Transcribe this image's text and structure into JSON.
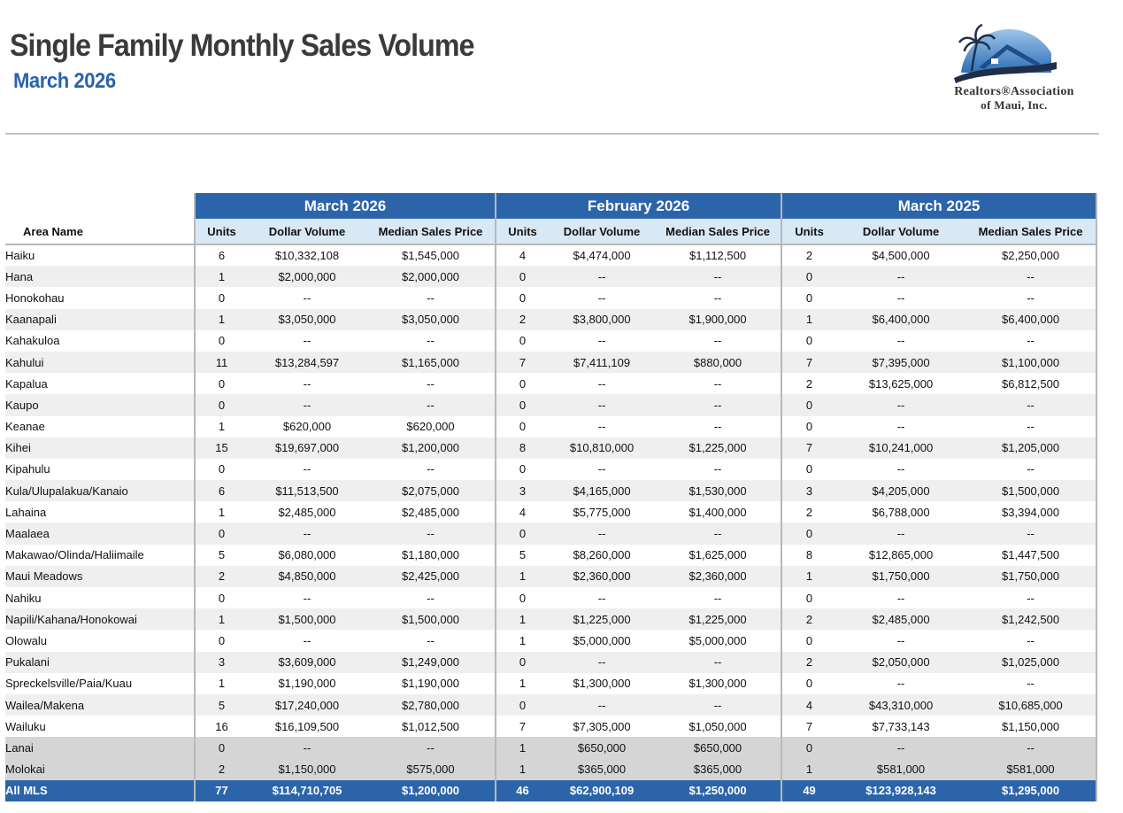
{
  "header": {
    "title": "Single Family Monthly Sales Volume",
    "subtitle": "March 2026"
  },
  "logo": {
    "icon": "palm-house-logo-icon",
    "line1": "Realtors®Association",
    "line2": "of Maui, Inc.",
    "colors": {
      "blue": "#2f6fb5",
      "dark": "#1f2f4a"
    }
  },
  "table": {
    "area_header": "Area Name",
    "groups": [
      "March 2026",
      "February 2026",
      "March 2025"
    ],
    "columns": [
      "Units",
      "Dollar Volume",
      "Median Sales Price"
    ],
    "rows": [
      {
        "area": "Haiku",
        "v": [
          "6",
          "$10,332,108",
          "$1,545,000",
          "4",
          "$4,474,000",
          "$1,112,500",
          "2",
          "$4,500,000",
          "$2,250,000"
        ]
      },
      {
        "area": "Hana",
        "v": [
          "1",
          "$2,000,000",
          "$2,000,000",
          "0",
          "--",
          "--",
          "0",
          "--",
          "--"
        ]
      },
      {
        "area": "Honokohau",
        "v": [
          "0",
          "--",
          "--",
          "0",
          "--",
          "--",
          "0",
          "--",
          "--"
        ]
      },
      {
        "area": "Kaanapali",
        "v": [
          "1",
          "$3,050,000",
          "$3,050,000",
          "2",
          "$3,800,000",
          "$1,900,000",
          "1",
          "$6,400,000",
          "$6,400,000"
        ]
      },
      {
        "area": "Kahakuloa",
        "v": [
          "0",
          "--",
          "--",
          "0",
          "--",
          "--",
          "0",
          "--",
          "--"
        ]
      },
      {
        "area": "Kahului",
        "v": [
          "11",
          "$13,284,597",
          "$1,165,000",
          "7",
          "$7,411,109",
          "$880,000",
          "7",
          "$7,395,000",
          "$1,100,000"
        ]
      },
      {
        "area": "Kapalua",
        "v": [
          "0",
          "--",
          "--",
          "0",
          "--",
          "--",
          "2",
          "$13,625,000",
          "$6,812,500"
        ]
      },
      {
        "area": "Kaupo",
        "v": [
          "0",
          "--",
          "--",
          "0",
          "--",
          "--",
          "0",
          "--",
          "--"
        ]
      },
      {
        "area": "Keanae",
        "v": [
          "1",
          "$620,000",
          "$620,000",
          "0",
          "--",
          "--",
          "0",
          "--",
          "--"
        ]
      },
      {
        "area": "Kihei",
        "v": [
          "15",
          "$19,697,000",
          "$1,200,000",
          "8",
          "$10,810,000",
          "$1,225,000",
          "7",
          "$10,241,000",
          "$1,205,000"
        ]
      },
      {
        "area": "Kipahulu",
        "v": [
          "0",
          "--",
          "--",
          "0",
          "--",
          "--",
          "0",
          "--",
          "--"
        ]
      },
      {
        "area": "Kula/Ulupalakua/Kanaio",
        "v": [
          "6",
          "$11,513,500",
          "$2,075,000",
          "3",
          "$4,165,000",
          "$1,530,000",
          "3",
          "$4,205,000",
          "$1,500,000"
        ]
      },
      {
        "area": "Lahaina",
        "v": [
          "1",
          "$2,485,000",
          "$2,485,000",
          "4",
          "$5,775,000",
          "$1,400,000",
          "2",
          "$6,788,000",
          "$3,394,000"
        ]
      },
      {
        "area": "Maalaea",
        "v": [
          "0",
          "--",
          "--",
          "0",
          "--",
          "--",
          "0",
          "--",
          "--"
        ]
      },
      {
        "area": "Makawao/Olinda/Haliimaile",
        "v": [
          "5",
          "$6,080,000",
          "$1,180,000",
          "5",
          "$8,260,000",
          "$1,625,000",
          "8",
          "$12,865,000",
          "$1,447,500"
        ]
      },
      {
        "area": "Maui Meadows",
        "v": [
          "2",
          "$4,850,000",
          "$2,425,000",
          "1",
          "$2,360,000",
          "$2,360,000",
          "1",
          "$1,750,000",
          "$1,750,000"
        ]
      },
      {
        "area": "Nahiku",
        "v": [
          "0",
          "--",
          "--",
          "0",
          "--",
          "--",
          "0",
          "--",
          "--"
        ]
      },
      {
        "area": "Napili/Kahana/Honokowai",
        "v": [
          "1",
          "$1,500,000",
          "$1,500,000",
          "1",
          "$1,225,000",
          "$1,225,000",
          "2",
          "$2,485,000",
          "$1,242,500"
        ]
      },
      {
        "area": "Olowalu",
        "v": [
          "0",
          "--",
          "--",
          "1",
          "$5,000,000",
          "$5,000,000",
          "0",
          "--",
          "--"
        ]
      },
      {
        "area": "Pukalani",
        "v": [
          "3",
          "$3,609,000",
          "$1,249,000",
          "0",
          "--",
          "--",
          "2",
          "$2,050,000",
          "$1,025,000"
        ]
      },
      {
        "area": "Spreckelsville/Paia/Kuau",
        "v": [
          "1",
          "$1,190,000",
          "$1,190,000",
          "1",
          "$1,300,000",
          "$1,300,000",
          "0",
          "--",
          "--"
        ]
      },
      {
        "area": "Wailea/Makena",
        "v": [
          "5",
          "$17,240,000",
          "$2,780,000",
          "0",
          "--",
          "--",
          "4",
          "$43,310,000",
          "$10,685,000"
        ]
      },
      {
        "area": "Wailuku",
        "v": [
          "16",
          "$16,109,500",
          "$1,012,500",
          "7",
          "$7,305,000",
          "$1,050,000",
          "7",
          "$7,733,143",
          "$1,150,000"
        ]
      }
    ],
    "island_rows": [
      {
        "area": "Lanai",
        "v": [
          "0",
          "--",
          "--",
          "1",
          "$650,000",
          "$650,000",
          "0",
          "--",
          "--"
        ]
      },
      {
        "area": "Molokai",
        "v": [
          "2",
          "$1,150,000",
          "$575,000",
          "1",
          "$365,000",
          "$365,000",
          "1",
          "$581,000",
          "$581,000"
        ]
      }
    ],
    "total": {
      "area": "All MLS",
      "v": [
        "77",
        "$114,710,705",
        "$1,200,000",
        "46",
        "$62,900,109",
        "$1,250,000",
        "49",
        "$123,928,143",
        "$1,295,000"
      ]
    }
  }
}
